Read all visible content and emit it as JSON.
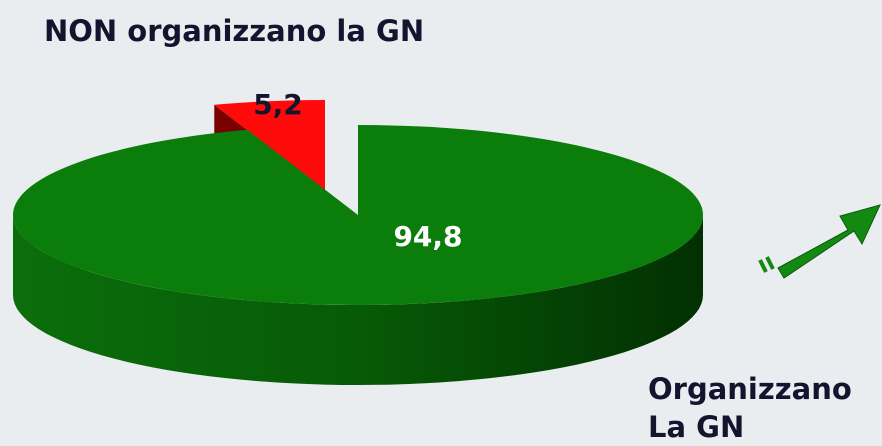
{
  "chart_data": {
    "type": "pie",
    "categories": [
      "Organizzano La GN",
      "NON organizzano la GN"
    ],
    "values": [
      94.8,
      5.2
    ],
    "value_labels": [
      "94,8",
      "5,2"
    ],
    "colors": [
      "#0a7d0a",
      "#ff0a0a"
    ]
  }
}
